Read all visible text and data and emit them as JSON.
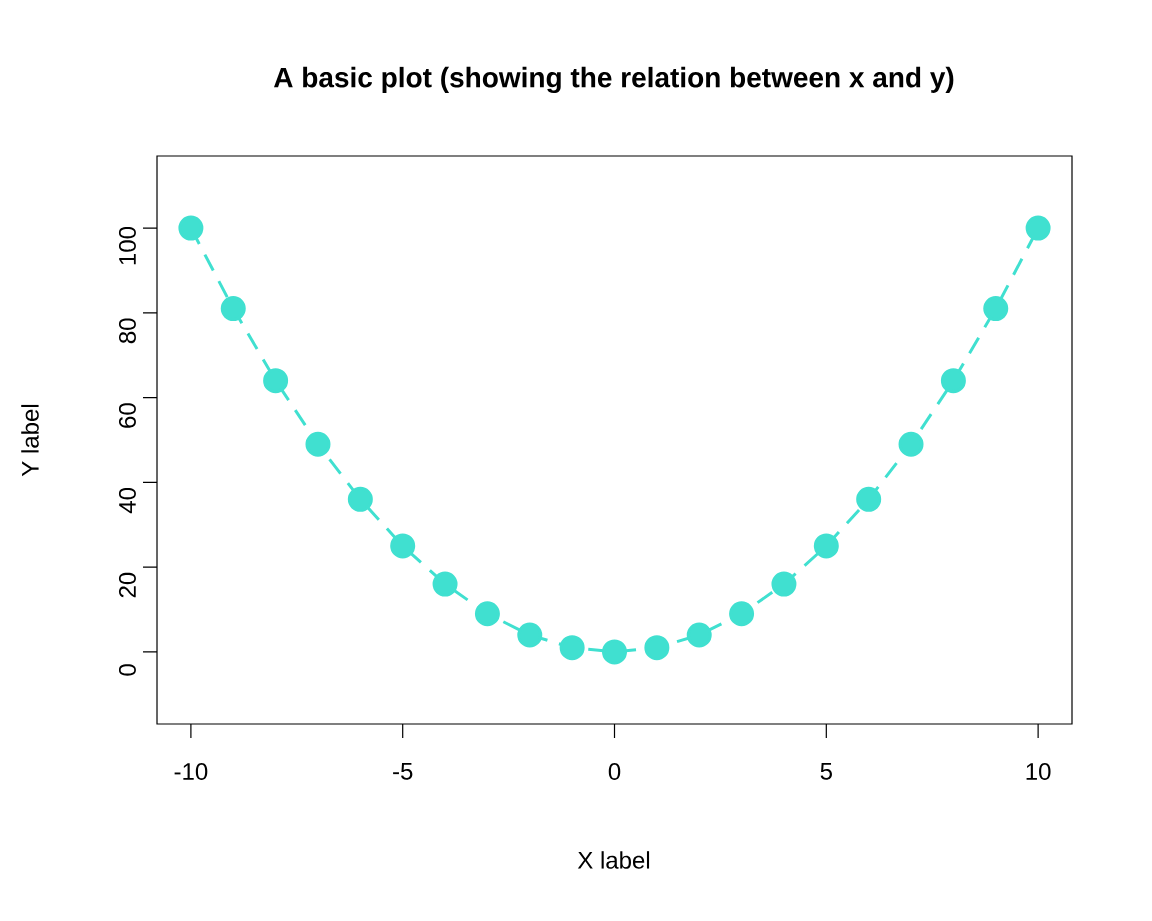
{
  "chart_data": {
    "type": "line",
    "title": "A basic plot (showing the relation between x and y)",
    "xlabel": "X label",
    "ylabel": "Y label",
    "x": [
      -10,
      -9,
      -8,
      -7,
      -6,
      -5,
      -4,
      -3,
      -2,
      -1,
      0,
      1,
      2,
      3,
      4,
      5,
      6,
      7,
      8,
      9,
      10
    ],
    "values": [
      100,
      81,
      64,
      49,
      36,
      25,
      16,
      9,
      4,
      1,
      0,
      1,
      4,
      9,
      16,
      25,
      36,
      49,
      64,
      81,
      100
    ],
    "color": "#40e0d0",
    "marker": "circle",
    "line_style": "dashed",
    "xlim": [
      -10.8,
      10.8
    ],
    "ylim": [
      -17,
      117
    ],
    "xticks": [
      -10,
      -5,
      0,
      5,
      10
    ],
    "yticks": [
      0,
      20,
      40,
      60,
      80,
      100
    ]
  }
}
